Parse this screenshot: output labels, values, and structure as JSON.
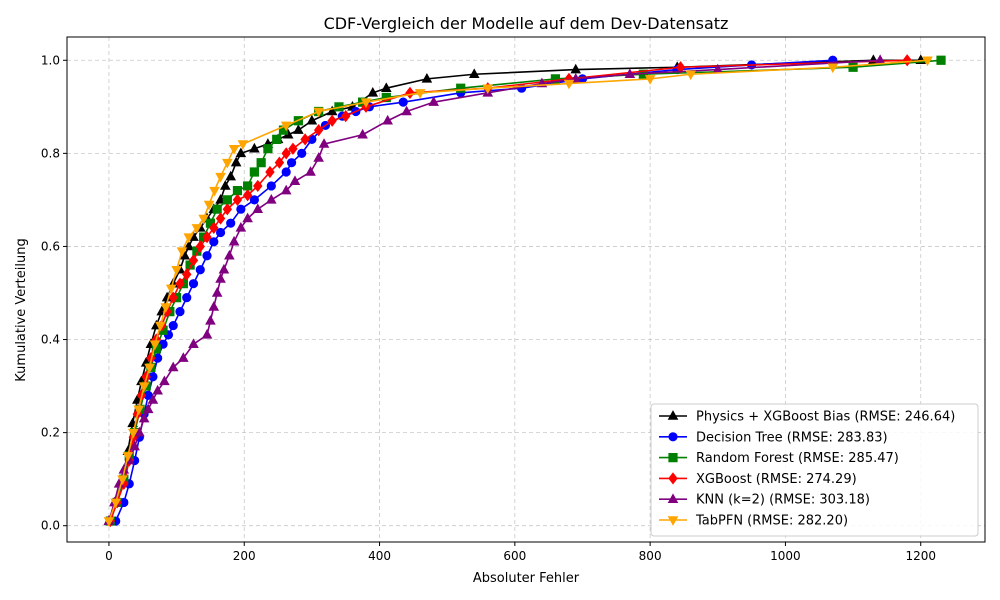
{
  "chart_data": {
    "type": "line",
    "title": "CDF-Vergleich der Modelle auf dem Dev-Datensatz",
    "xlabel": "Absoluter Fehler",
    "ylabel": "Kumulative Verteilung",
    "xlim": [
      -62,
      1295
    ],
    "ylim": [
      -0.035,
      1.05
    ],
    "xticks": [
      0,
      200,
      400,
      600,
      800,
      1000,
      1200
    ],
    "yticks": [
      0.0,
      0.2,
      0.4,
      0.6,
      0.8,
      1.0
    ],
    "xtick_labels": [
      "0",
      "200",
      "400",
      "600",
      "800",
      "1000",
      "1200"
    ],
    "ytick_labels": [
      "0.0",
      "0.2",
      "0.4",
      "0.6",
      "0.8",
      "1.0"
    ],
    "grid": true,
    "legend_position": "lower-right",
    "series": [
      {
        "name": "Physics + XGBoost Bias (RMSE: 246.64)",
        "color": "#000000",
        "marker": "triangle-up",
        "x": [
          0,
          10,
          20,
          28,
          35,
          42,
          48,
          55,
          62,
          70,
          78,
          86,
          95,
          105,
          112,
          118,
          125,
          135,
          145,
          155,
          165,
          172,
          180,
          188,
          195,
          215,
          235,
          250,
          265,
          280,
          300,
          330,
          360,
          390,
          410,
          470,
          540,
          690,
          840,
          1130,
          1200
        ],
        "y": [
          0.01,
          0.05,
          0.1,
          0.16,
          0.22,
          0.27,
          0.31,
          0.35,
          0.39,
          0.43,
          0.46,
          0.49,
          0.52,
          0.55,
          0.58,
          0.6,
          0.62,
          0.64,
          0.66,
          0.68,
          0.7,
          0.73,
          0.75,
          0.78,
          0.8,
          0.81,
          0.82,
          0.83,
          0.84,
          0.85,
          0.87,
          0.89,
          0.9,
          0.93,
          0.94,
          0.96,
          0.97,
          0.98,
          0.985,
          1.0,
          1.0
        ]
      },
      {
        "name": "Decision Tree (RMSE: 283.83)",
        "color": "#0000ff",
        "marker": "circle",
        "x": [
          10,
          22,
          30,
          38,
          45,
          52,
          58,
          65,
          72,
          80,
          88,
          95,
          105,
          115,
          125,
          135,
          145,
          155,
          165,
          180,
          195,
          215,
          240,
          262,
          270,
          285,
          300,
          320,
          345,
          365,
          385,
          435,
          520,
          610,
          700,
          840,
          950,
          1070
        ],
        "y": [
          0.01,
          0.05,
          0.09,
          0.14,
          0.19,
          0.24,
          0.28,
          0.32,
          0.36,
          0.39,
          0.41,
          0.43,
          0.46,
          0.49,
          0.52,
          0.55,
          0.58,
          0.61,
          0.63,
          0.65,
          0.68,
          0.7,
          0.73,
          0.76,
          0.78,
          0.8,
          0.83,
          0.86,
          0.88,
          0.89,
          0.9,
          0.91,
          0.93,
          0.94,
          0.96,
          0.98,
          0.99,
          1.0
        ]
      },
      {
        "name": "Random Forest (RMSE: 285.47)",
        "color": "#008000",
        "marker": "square",
        "x": [
          2,
          12,
          22,
          30,
          38,
          46,
          55,
          62,
          70,
          80,
          90,
          100,
          110,
          120,
          130,
          140,
          150,
          160,
          175,
          190,
          205,
          215,
          225,
          235,
          248,
          258,
          280,
          310,
          340,
          375,
          410,
          520,
          660,
          790,
          1100,
          1230
        ],
        "y": [
          0.01,
          0.05,
          0.1,
          0.15,
          0.2,
          0.25,
          0.3,
          0.34,
          0.38,
          0.42,
          0.46,
          0.49,
          0.52,
          0.56,
          0.59,
          0.62,
          0.65,
          0.68,
          0.7,
          0.72,
          0.73,
          0.76,
          0.78,
          0.81,
          0.83,
          0.85,
          0.87,
          0.89,
          0.9,
          0.91,
          0.92,
          0.94,
          0.96,
          0.97,
          0.985,
          1.0
        ]
      },
      {
        "name": "XGBoost (RMSE: 274.29)",
        "color": "#ff0000",
        "marker": "diamond",
        "x": [
          2,
          12,
          22,
          30,
          36,
          42,
          48,
          55,
          62,
          70,
          78,
          86,
          95,
          105,
          115,
          125,
          135,
          145,
          155,
          165,
          175,
          190,
          205,
          220,
          238,
          252,
          262,
          272,
          290,
          310,
          330,
          350,
          380,
          445,
          560,
          680,
          845,
          1180
        ],
        "y": [
          0.01,
          0.05,
          0.09,
          0.14,
          0.19,
          0.24,
          0.28,
          0.32,
          0.36,
          0.4,
          0.43,
          0.46,
          0.49,
          0.52,
          0.54,
          0.57,
          0.6,
          0.62,
          0.64,
          0.66,
          0.68,
          0.7,
          0.71,
          0.73,
          0.76,
          0.78,
          0.8,
          0.81,
          0.83,
          0.85,
          0.87,
          0.88,
          0.9,
          0.93,
          0.94,
          0.96,
          0.985,
          1.0
        ]
      },
      {
        "name": "KNN (k=2) (RMSE: 303.18)",
        "color": "#800080",
        "marker": "triangle-up",
        "x": [
          0,
          8,
          15,
          22,
          30,
          38,
          45,
          52,
          58,
          65,
          72,
          82,
          95,
          110,
          125,
          145,
          150,
          155,
          160,
          165,
          170,
          178,
          185,
          195,
          205,
          220,
          240,
          262,
          275,
          298,
          310,
          318,
          375,
          412,
          440,
          480,
          560,
          640,
          690,
          770,
          900,
          1140
        ],
        "y": [
          0.01,
          0.05,
          0.09,
          0.12,
          0.14,
          0.17,
          0.2,
          0.23,
          0.25,
          0.27,
          0.29,
          0.31,
          0.34,
          0.36,
          0.39,
          0.41,
          0.44,
          0.47,
          0.5,
          0.53,
          0.55,
          0.58,
          0.61,
          0.64,
          0.66,
          0.68,
          0.7,
          0.72,
          0.74,
          0.76,
          0.79,
          0.82,
          0.84,
          0.87,
          0.89,
          0.91,
          0.93,
          0.95,
          0.96,
          0.97,
          0.98,
          1.0
        ]
      },
      {
        "name": "TabPFN (RMSE: 282.20)",
        "color": "#ffa500",
        "marker": "triangle-down",
        "x": [
          0,
          10,
          20,
          28,
          36,
          44,
          52,
          60,
          68,
          76,
          84,
          92,
          100,
          108,
          118,
          130,
          140,
          148,
          156,
          165,
          175,
          185,
          198,
          262,
          310,
          380,
          460,
          560,
          680,
          800,
          860,
          1070,
          1210
        ],
        "y": [
          0.01,
          0.05,
          0.1,
          0.15,
          0.2,
          0.25,
          0.3,
          0.34,
          0.39,
          0.43,
          0.47,
          0.51,
          0.55,
          0.59,
          0.62,
          0.64,
          0.66,
          0.69,
          0.72,
          0.75,
          0.78,
          0.81,
          0.82,
          0.86,
          0.89,
          0.91,
          0.93,
          0.94,
          0.95,
          0.96,
          0.97,
          0.985,
          1.0
        ]
      }
    ]
  }
}
